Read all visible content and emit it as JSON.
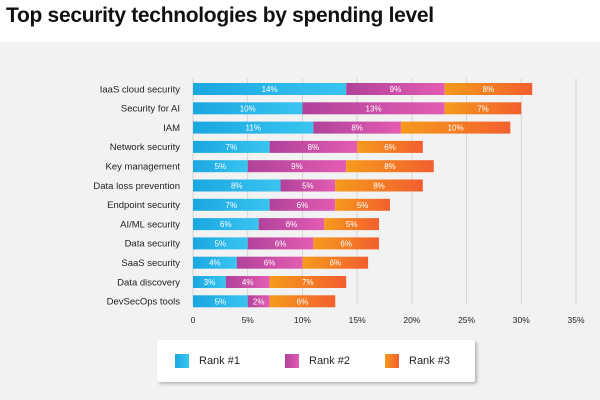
{
  "title": "Top security technologies by spending level",
  "colors": {
    "rank1": [
      "#1aa7e0",
      "#39c4f0"
    ],
    "rank2": [
      "#b0429a",
      "#e45cb3"
    ],
    "rank3": [
      "#f59a1c",
      "#f25f2e"
    ],
    "panel": "#f2f2f2",
    "grid": "#cfcfcf"
  },
  "chart_data": {
    "type": "bar",
    "orientation": "horizontal",
    "stacked": true,
    "title": "Top security technologies by spending level",
    "categories": [
      "IaaS cloud security",
      "Security for AI",
      "IAM",
      "Network security",
      "Key management",
      "Data loss prevention",
      "Endpoint security",
      "AI/ML security",
      "Data security",
      "SaaS security",
      "Data discovery",
      "DevSecOps tools"
    ],
    "series": [
      {
        "name": "Rank #1",
        "values": [
          14,
          10,
          11,
          7,
          5,
          8,
          7,
          6,
          5,
          4,
          3,
          5
        ],
        "labels": [
          "14%",
          "10%",
          "11%",
          "7%",
          "5%",
          "8%",
          "7%",
          "6%",
          "5%",
          "4%",
          "3%",
          "5%"
        ]
      },
      {
        "name": "Rank #2",
        "values": [
          9,
          13,
          8,
          8,
          9,
          5,
          6,
          6,
          6,
          6,
          4,
          2
        ],
        "labels": [
          "9%",
          "13%",
          "8%",
          "8%",
          "9%",
          "5%",
          "6%",
          "6%",
          "6%",
          "6%",
          "4%",
          "2%"
        ]
      },
      {
        "name": "Rank #3",
        "values": [
          8,
          7,
          10,
          6,
          8,
          8,
          5,
          5,
          6,
          6,
          7,
          6
        ],
        "labels": [
          "8%",
          "7%",
          "10%",
          "6%",
          "8%",
          "8%",
          "5%",
          "5%",
          "6%",
          "6%",
          "7%",
          "6%"
        ]
      }
    ],
    "xlim": [
      0,
      35
    ],
    "xticks": [
      0,
      5,
      10,
      15,
      20,
      25,
      30,
      35
    ],
    "xtick_labels": [
      "0",
      "5%",
      "10%",
      "15%",
      "20%",
      "25%",
      "30%",
      "35%"
    ],
    "grid": true,
    "legend": "bottom-center"
  },
  "legend": {
    "items": [
      {
        "label": "Rank #1"
      },
      {
        "label": "Rank #2"
      },
      {
        "label": "Rank #3"
      }
    ]
  }
}
